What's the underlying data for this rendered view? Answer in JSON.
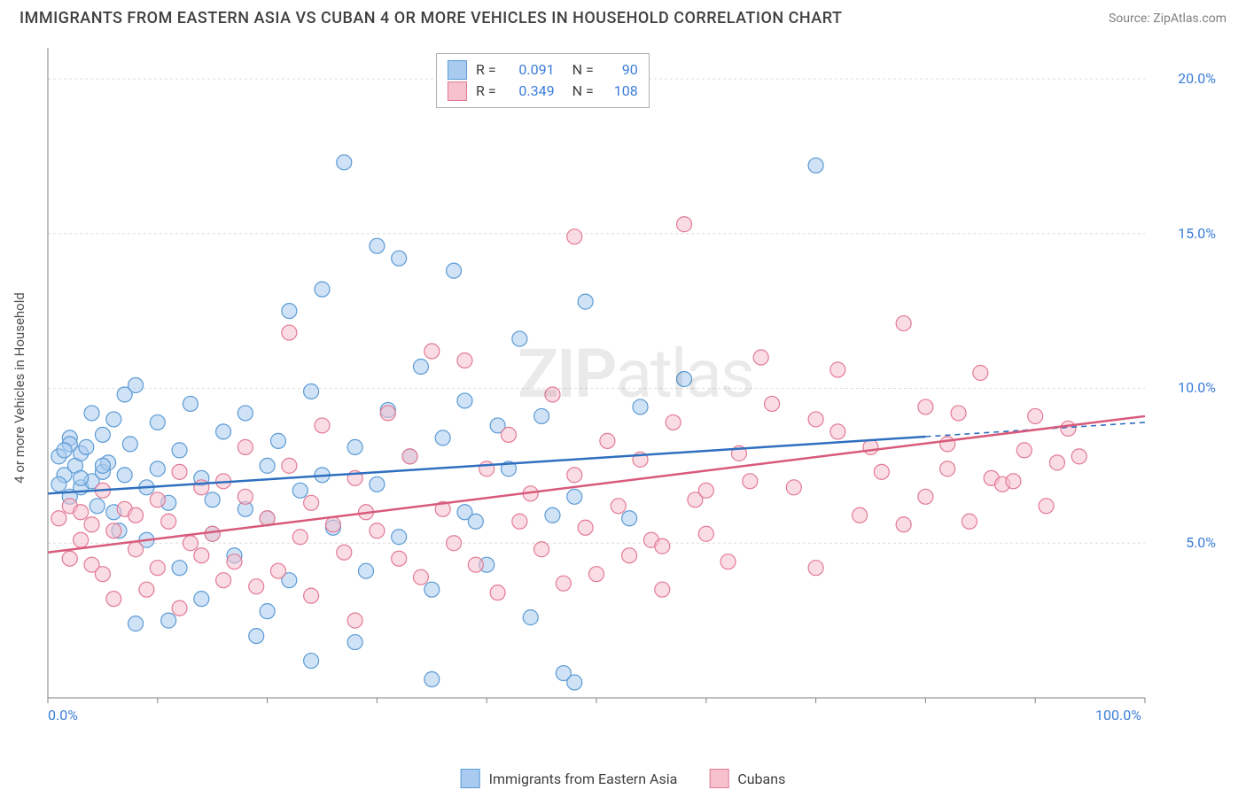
{
  "title": "IMMIGRANTS FROM EASTERN ASIA VS CUBAN 4 OR MORE VEHICLES IN HOUSEHOLD CORRELATION CHART",
  "source": "Source: ZipAtlas.com",
  "watermark_bold": "ZIP",
  "watermark_light": "atlas",
  "y_axis_label": "4 or more Vehicles in Household",
  "chart": {
    "type": "scatter",
    "background_color": "#ffffff",
    "grid_color": "#dcdcdc",
    "axis_color": "#808080",
    "xlim": [
      0,
      100
    ],
    "ylim": [
      0,
      21
    ],
    "x_ticks": [
      0,
      100
    ],
    "x_tick_labels": [
      "0.0%",
      "100.0%"
    ],
    "y_ticks": [
      5,
      10,
      15,
      20
    ],
    "y_tick_labels": [
      "5.0%",
      "10.0%",
      "15.0%",
      "20.0%"
    ],
    "series": [
      {
        "name": "Immigrants from Eastern Asia",
        "fill": "#a9cbef",
        "stroke": "#5b9bd5",
        "line_color": "#2f6fbf",
        "R": "0.091",
        "N": "90",
        "trend": {
          "x1": 0,
          "y1": 6.6,
          "x2": 100,
          "y2": 8.9
        },
        "trend_solid_until": 80,
        "points": [
          [
            1,
            7.8
          ],
          [
            1.5,
            7.2
          ],
          [
            2,
            8.4
          ],
          [
            2,
            6.5
          ],
          [
            2.5,
            7.5
          ],
          [
            3,
            6.8
          ],
          [
            3,
            7.9
          ],
          [
            3.5,
            8.1
          ],
          [
            4,
            7.0
          ],
          [
            4,
            9.2
          ],
          [
            4.5,
            6.2
          ],
          [
            5,
            8.5
          ],
          [
            5,
            7.3
          ],
          [
            5.5,
            7.6
          ],
          [
            6,
            6.0
          ],
          [
            6,
            9.0
          ],
          [
            6.5,
            5.4
          ],
          [
            7,
            7.2
          ],
          [
            7,
            9.8
          ],
          [
            7.5,
            8.2
          ],
          [
            8,
            2.4
          ],
          [
            8,
            10.1
          ],
          [
            9,
            6.8
          ],
          [
            9,
            5.1
          ],
          [
            10,
            7.4
          ],
          [
            10,
            8.9
          ],
          [
            11,
            6.3
          ],
          [
            12,
            8.0
          ],
          [
            12,
            4.2
          ],
          [
            13,
            9.5
          ],
          [
            14,
            7.1
          ],
          [
            15,
            6.4
          ],
          [
            15,
            5.3
          ],
          [
            16,
            8.6
          ],
          [
            17,
            4.6
          ],
          [
            18,
            9.2
          ],
          [
            18,
            6.1
          ],
          [
            19,
            2.0
          ],
          [
            20,
            7.5
          ],
          [
            20,
            5.8
          ],
          [
            21,
            8.3
          ],
          [
            22,
            12.5
          ],
          [
            22,
            3.8
          ],
          [
            23,
            6.7
          ],
          [
            24,
            9.9
          ],
          [
            25,
            7.2
          ],
          [
            25,
            13.2
          ],
          [
            26,
            5.5
          ],
          [
            27,
            17.3
          ],
          [
            28,
            8.1
          ],
          [
            29,
            4.1
          ],
          [
            30,
            6.9
          ],
          [
            30,
            14.6
          ],
          [
            31,
            9.3
          ],
          [
            32,
            5.2
          ],
          [
            32,
            14.2
          ],
          [
            33,
            7.8
          ],
          [
            34,
            10.7
          ],
          [
            35,
            3.5
          ],
          [
            36,
            8.4
          ],
          [
            37,
            13.8
          ],
          [
            38,
            6.0
          ],
          [
            38,
            9.6
          ],
          [
            39,
            5.7
          ],
          [
            40,
            4.3
          ],
          [
            41,
            8.8
          ],
          [
            42,
            7.4
          ],
          [
            43,
            11.6
          ],
          [
            44,
            2.6
          ],
          [
            45,
            9.1
          ],
          [
            46,
            5.9
          ],
          [
            47,
            0.8
          ],
          [
            48,
            6.5
          ],
          [
            48,
            0.5
          ],
          [
            49,
            12.8
          ],
          [
            53,
            5.8
          ],
          [
            54,
            9.4
          ],
          [
            58,
            10.3
          ],
          [
            70,
            17.2
          ],
          [
            35,
            0.6
          ],
          [
            24,
            1.2
          ],
          [
            28,
            1.8
          ],
          [
            20,
            2.8
          ],
          [
            14,
            3.2
          ],
          [
            11,
            2.5
          ],
          [
            5,
            7.5
          ],
          [
            3,
            7.1
          ],
          [
            2,
            8.2
          ],
          [
            1,
            6.9
          ],
          [
            1.5,
            8.0
          ]
        ]
      },
      {
        "name": "Cubans",
        "fill": "#f6c1cd",
        "stroke": "#e27a94",
        "line_color": "#d85a7a",
        "R": "0.349",
        "N": "108",
        "trend": {
          "x1": 0,
          "y1": 4.7,
          "x2": 100,
          "y2": 9.1
        },
        "trend_solid_until": 100,
        "points": [
          [
            1,
            5.8
          ],
          [
            2,
            6.2
          ],
          [
            2,
            4.5
          ],
          [
            3,
            5.1
          ],
          [
            3,
            6.0
          ],
          [
            4,
            4.3
          ],
          [
            4,
            5.6
          ],
          [
            5,
            6.7
          ],
          [
            5,
            4.0
          ],
          [
            6,
            5.4
          ],
          [
            6,
            3.2
          ],
          [
            7,
            6.1
          ],
          [
            8,
            4.8
          ],
          [
            8,
            5.9
          ],
          [
            9,
            3.5
          ],
          [
            10,
            6.4
          ],
          [
            10,
            4.2
          ],
          [
            11,
            5.7
          ],
          [
            12,
            2.9
          ],
          [
            12,
            7.3
          ],
          [
            13,
            5.0
          ],
          [
            14,
            6.8
          ],
          [
            14,
            4.6
          ],
          [
            15,
            5.3
          ],
          [
            16,
            3.8
          ],
          [
            16,
            7.0
          ],
          [
            17,
            4.4
          ],
          [
            18,
            6.5
          ],
          [
            18,
            8.1
          ],
          [
            19,
            3.6
          ],
          [
            20,
            5.8
          ],
          [
            21,
            4.1
          ],
          [
            22,
            7.5
          ],
          [
            22,
            11.8
          ],
          [
            23,
            5.2
          ],
          [
            24,
            6.3
          ],
          [
            24,
            3.3
          ],
          [
            25,
            8.8
          ],
          [
            26,
            5.6
          ],
          [
            27,
            4.7
          ],
          [
            28,
            7.1
          ],
          [
            28,
            2.5
          ],
          [
            29,
            6.0
          ],
          [
            30,
            5.4
          ],
          [
            31,
            9.2
          ],
          [
            32,
            4.5
          ],
          [
            33,
            7.8
          ],
          [
            34,
            3.9
          ],
          [
            35,
            11.2
          ],
          [
            36,
            6.1
          ],
          [
            37,
            5.0
          ],
          [
            38,
            10.9
          ],
          [
            39,
            4.3
          ],
          [
            40,
            7.4
          ],
          [
            41,
            3.4
          ],
          [
            42,
            8.5
          ],
          [
            43,
            5.7
          ],
          [
            44,
            6.6
          ],
          [
            45,
            4.8
          ],
          [
            46,
            9.8
          ],
          [
            47,
            3.7
          ],
          [
            48,
            7.2
          ],
          [
            49,
            5.5
          ],
          [
            50,
            4.0
          ],
          [
            51,
            8.3
          ],
          [
            52,
            6.2
          ],
          [
            53,
            4.6
          ],
          [
            54,
            7.7
          ],
          [
            55,
            5.1
          ],
          [
            56,
            3.5
          ],
          [
            57,
            8.9
          ],
          [
            58,
            15.3
          ],
          [
            59,
            6.4
          ],
          [
            60,
            5.3
          ],
          [
            62,
            4.4
          ],
          [
            64,
            7.0
          ],
          [
            66,
            9.5
          ],
          [
            68,
            6.8
          ],
          [
            70,
            4.2
          ],
          [
            72,
            8.6
          ],
          [
            74,
            5.9
          ],
          [
            76,
            7.3
          ],
          [
            78,
            12.1
          ],
          [
            80,
            6.5
          ],
          [
            80,
            9.4
          ],
          [
            82,
            8.2
          ],
          [
            83,
            9.2
          ],
          [
            84,
            5.7
          ],
          [
            85,
            10.5
          ],
          [
            86,
            7.1
          ],
          [
            87,
            6.9
          ],
          [
            88,
            7.0
          ],
          [
            89,
            8.0
          ],
          [
            90,
            9.1
          ],
          [
            91,
            6.2
          ],
          [
            92,
            7.6
          ],
          [
            93,
            8.7
          ],
          [
            94,
            7.8
          ],
          [
            72,
            10.6
          ],
          [
            65,
            11.0
          ],
          [
            56,
            4.9
          ],
          [
            48,
            14.9
          ],
          [
            78,
            5.6
          ],
          [
            82,
            7.4
          ],
          [
            63,
            7.9
          ],
          [
            70,
            9.0
          ],
          [
            75,
            8.1
          ],
          [
            60,
            6.7
          ]
        ]
      }
    ]
  },
  "bottom_legend": [
    {
      "label": "Immigrants from Eastern Asia",
      "fill": "#a9cbef",
      "stroke": "#5b9bd5"
    },
    {
      "label": "Cubans",
      "fill": "#f6c1cd",
      "stroke": "#e27a94"
    }
  ]
}
